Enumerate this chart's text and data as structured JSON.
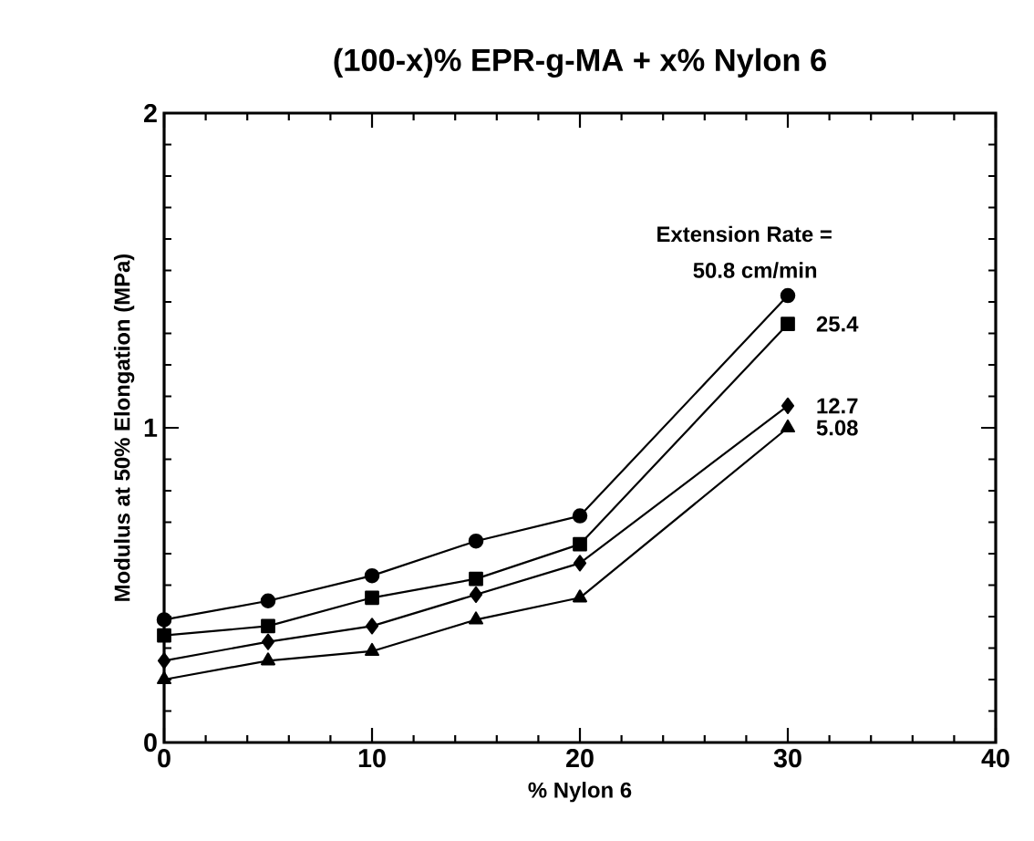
{
  "chart_data": {
    "type": "line",
    "title": "(100-x)% EPR-g-MA + x% Nylon 6",
    "xlabel": "% Nylon 6",
    "ylabel": "Modulus at 50% Elongation (MPa)",
    "legend_title": "Extension Rate =",
    "x": [
      0,
      5,
      10,
      15,
      20,
      30
    ],
    "series": [
      {
        "name": "50.8 cm/min",
        "color": "#000000",
        "marker": "circle",
        "values": [
          0.39,
          0.45,
          0.53,
          0.64,
          0.72,
          1.42
        ]
      },
      {
        "name": "25.4",
        "color": "#000000",
        "marker": "square",
        "values": [
          0.34,
          0.37,
          0.46,
          0.52,
          0.63,
          1.33
        ]
      },
      {
        "name": "12.7",
        "color": "#000000",
        "marker": "diamond",
        "values": [
          0.26,
          0.32,
          0.37,
          0.47,
          0.57,
          1.07
        ]
      },
      {
        "name": "5.08",
        "color": "#000000",
        "marker": "triangle",
        "values": [
          0.2,
          0.26,
          0.29,
          0.39,
          0.46,
          1.0
        ]
      }
    ],
    "xlim": [
      0,
      40
    ],
    "xticks": [
      0,
      10,
      20,
      30,
      40
    ],
    "ylim": [
      0,
      2
    ],
    "yticks": [
      0,
      1,
      2
    ],
    "grid": false
  }
}
